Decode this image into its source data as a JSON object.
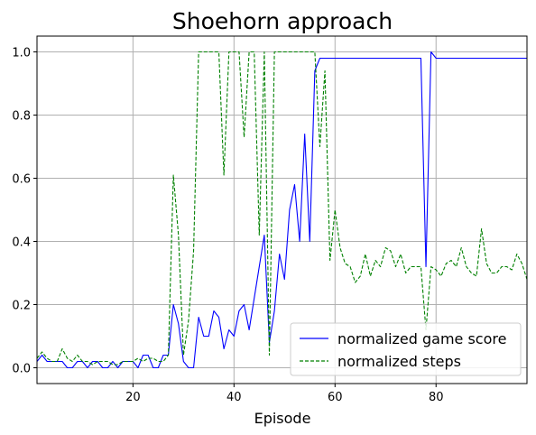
{
  "chart_data": {
    "type": "line",
    "title": "Shoehorn approach",
    "xlabel": "Episode",
    "ylabel": "",
    "xlim": [
      1,
      98
    ],
    "ylim": [
      -0.05,
      1.05
    ],
    "xticks": [
      20,
      40,
      60,
      80
    ],
    "yticks": [
      0.0,
      0.2,
      0.4,
      0.6,
      0.8,
      1.0
    ],
    "grid": true,
    "legend_position": "lower-right",
    "series": [
      {
        "name": "normalized game score",
        "color": "#0000ff",
        "style": "solid",
        "x": [
          1,
          2,
          3,
          4,
          5,
          6,
          7,
          8,
          9,
          10,
          11,
          12,
          13,
          14,
          15,
          16,
          17,
          18,
          19,
          20,
          21,
          22,
          23,
          24,
          25,
          26,
          27,
          28,
          29,
          30,
          31,
          32,
          33,
          34,
          35,
          36,
          37,
          38,
          39,
          40,
          41,
          42,
          43,
          44,
          45,
          46,
          47,
          48,
          49,
          50,
          51,
          52,
          53,
          54,
          55,
          56,
          57,
          58,
          59,
          60,
          61,
          62,
          63,
          64,
          65,
          66,
          67,
          68,
          69,
          70,
          71,
          72,
          73,
          74,
          75,
          76,
          77,
          78,
          79,
          80,
          81,
          82,
          83,
          84,
          85,
          86,
          87,
          88,
          89,
          90,
          91,
          92,
          93,
          94,
          95,
          96,
          97,
          98
        ],
        "y": [
          0.02,
          0.04,
          0.02,
          0.02,
          0.02,
          0.02,
          0.0,
          0.0,
          0.02,
          0.02,
          0.0,
          0.02,
          0.02,
          0.0,
          0.0,
          0.02,
          0.0,
          0.02,
          0.02,
          0.02,
          0.0,
          0.04,
          0.04,
          0.0,
          0.0,
          0.04,
          0.04,
          0.2,
          0.14,
          0.02,
          0.0,
          0.0,
          0.16,
          0.1,
          0.1,
          0.18,
          0.16,
          0.06,
          0.12,
          0.1,
          0.18,
          0.2,
          0.12,
          0.22,
          0.32,
          0.42,
          0.08,
          0.18,
          0.36,
          0.28,
          0.5,
          0.58,
          0.4,
          0.74,
          0.4,
          0.94,
          0.98,
          0.98,
          0.98,
          0.98,
          0.98,
          0.98,
          0.98,
          0.98,
          0.98,
          0.98,
          0.98,
          0.98,
          0.98,
          0.98,
          0.98,
          0.98,
          0.98,
          0.98,
          0.98,
          0.98,
          0.98,
          0.32,
          1.0,
          0.98,
          0.98,
          0.98,
          0.98,
          0.98,
          0.98,
          0.98,
          0.98,
          0.98,
          0.98,
          0.98,
          0.98,
          0.98,
          0.98,
          0.98,
          0.98,
          0.98,
          0.98,
          0.98
        ]
      },
      {
        "name": "normalized steps",
        "color": "#008000",
        "style": "dashed",
        "x": [
          1,
          2,
          3,
          4,
          5,
          6,
          7,
          8,
          9,
          10,
          11,
          12,
          13,
          14,
          15,
          16,
          17,
          18,
          19,
          20,
          21,
          22,
          23,
          24,
          25,
          26,
          27,
          28,
          29,
          30,
          31,
          32,
          33,
          34,
          35,
          36,
          37,
          38,
          39,
          40,
          41,
          42,
          43,
          44,
          45,
          46,
          47,
          48,
          49,
          50,
          51,
          52,
          53,
          54,
          55,
          56,
          57,
          58,
          59,
          60,
          61,
          62,
          63,
          64,
          65,
          66,
          67,
          68,
          69,
          70,
          71,
          72,
          73,
          74,
          75,
          76,
          77,
          78,
          79,
          80,
          81,
          82,
          83,
          84,
          85,
          86,
          87,
          88,
          89,
          90,
          91,
          92,
          93,
          94,
          95,
          96,
          97,
          98
        ],
        "y": [
          0.03,
          0.05,
          0.03,
          0.02,
          0.02,
          0.06,
          0.03,
          0.02,
          0.04,
          0.02,
          0.02,
          0.01,
          0.02,
          0.02,
          0.02,
          0.01,
          0.01,
          0.02,
          0.02,
          0.02,
          0.03,
          0.02,
          0.03,
          0.03,
          0.02,
          0.02,
          0.04,
          0.61,
          0.42,
          0.04,
          0.15,
          0.37,
          1.0,
          1.0,
          1.0,
          1.0,
          1.0,
          0.61,
          1.0,
          1.0,
          1.0,
          0.73,
          1.0,
          1.0,
          0.42,
          1.0,
          0.04,
          1.0,
          1.0,
          1.0,
          1.0,
          1.0,
          1.0,
          1.0,
          1.0,
          1.0,
          0.7,
          0.94,
          0.34,
          0.5,
          0.38,
          0.33,
          0.32,
          0.27,
          0.29,
          0.36,
          0.29,
          0.34,
          0.32,
          0.38,
          0.37,
          0.32,
          0.36,
          0.3,
          0.32,
          0.32,
          0.32,
          0.12,
          0.32,
          0.31,
          0.29,
          0.33,
          0.34,
          0.32,
          0.38,
          0.32,
          0.3,
          0.29,
          0.44,
          0.33,
          0.3,
          0.3,
          0.32,
          0.32,
          0.31,
          0.36,
          0.33,
          0.28
        ]
      }
    ]
  }
}
